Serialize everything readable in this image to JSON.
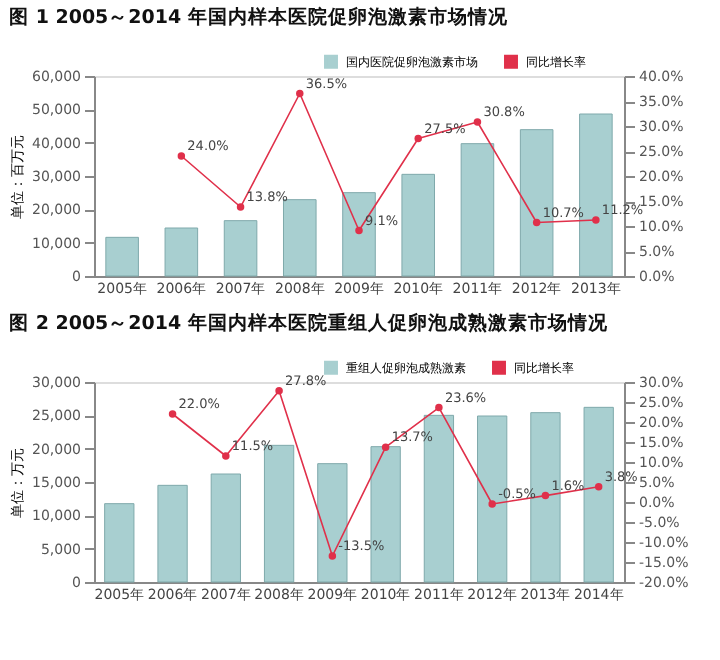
{
  "chart_data": [
    {
      "type": "bar",
      "title": "图 1  2005～2014 年国内样本医院促卵泡激素市场情况",
      "ylabel": "单位：百万元",
      "categories": [
        "2005年",
        "2006年",
        "2007年",
        "2008年",
        "2009年",
        "2010年",
        "2011年",
        "2012年",
        "2013年"
      ],
      "series": [
        {
          "name": "国内医院促卵泡激素市场",
          "color": "#a8cfd0",
          "values": [
            11600,
            14400,
            16600,
            22900,
            25000,
            30500,
            39700,
            43900,
            48600
          ]
        },
        {
          "name": "同比增长率",
          "type": "line",
          "axis": "y2",
          "color": "#e0304a",
          "marker": "circle",
          "values": [
            null,
            24.0,
            13.8,
            36.5,
            9.1,
            27.5,
            30.8,
            10.7,
            11.2
          ],
          "value_labels": [
            null,
            "24.0%",
            "13.8%",
            "36.5%",
            "9.1%",
            "27.5%",
            "30.8%",
            "10.7%",
            "11.2%"
          ]
        }
      ],
      "ylim": [
        0,
        60000
      ],
      "yticks": [
        {
          "value": 0,
          "label": "0"
        },
        {
          "value": 10000,
          "label": "10,000"
        },
        {
          "value": 20000,
          "label": "20,000"
        },
        {
          "value": 30000,
          "label": "30,000"
        },
        {
          "value": 40000,
          "label": "40,000"
        },
        {
          "value": 50000,
          "label": "50,000"
        },
        {
          "value": 60000,
          "label": "60,000"
        }
      ],
      "y2lim": [
        0,
        40
      ],
      "y2ticks": [
        {
          "value": 0,
          "label": "0.0%"
        },
        {
          "value": 5,
          "label": "5.0%"
        },
        {
          "value": 10,
          "label": "10.0%"
        },
        {
          "value": 15,
          "label": "15.0%"
        },
        {
          "value": 20,
          "label": "20.0%"
        },
        {
          "value": 25,
          "label": "25.0%"
        },
        {
          "value": 30,
          "label": "30.0%"
        },
        {
          "value": 35,
          "label": "35.0%"
        },
        {
          "value": 40,
          "label": "40.0%"
        }
      ],
      "grid": false,
      "legend": "top right"
    },
    {
      "type": "bar",
      "title": "图 2  2005～2014 年国内样本医院重组人促卵泡成熟激素市场情况",
      "ylabel": "单位：万元",
      "categories": [
        "2005年",
        "2006年",
        "2007年",
        "2008年",
        "2009年",
        "2010年",
        "2011年",
        "2012年",
        "2013年",
        "2014年"
      ],
      "series": [
        {
          "name": "重组人促卵泡成熟激素",
          "color": "#a8cfd0",
          "values": [
            11750,
            14500,
            16200,
            20500,
            17750,
            20300,
            25000,
            24900,
            25400,
            26200
          ]
        },
        {
          "name": "同比增长率",
          "type": "line",
          "axis": "y2",
          "color": "#e0304a",
          "marker": "circle",
          "values": [
            null,
            22.0,
            11.5,
            27.8,
            -13.5,
            13.7,
            23.6,
            -0.5,
            1.6,
            3.8
          ],
          "value_labels": [
            null,
            "22.0%",
            "11.5%",
            "27.8%",
            "-13.5%",
            "13.7%",
            "23.6%",
            "-0.5%",
            "1.6%",
            "3.8%"
          ]
        }
      ],
      "ylim": [
        0,
        30000
      ],
      "yticks": [
        {
          "value": 0,
          "label": "0"
        },
        {
          "value": 5000,
          "label": "5,000"
        },
        {
          "value": 10000,
          "label": "10,000"
        },
        {
          "value": 15000,
          "label": "15,000"
        },
        {
          "value": 20000,
          "label": "20,000"
        },
        {
          "value": 25000,
          "label": "25,000"
        },
        {
          "value": 30000,
          "label": "30,000"
        }
      ],
      "y2lim": [
        -20,
        30
      ],
      "y2ticks": [
        {
          "value": -20,
          "label": "-20.0%"
        },
        {
          "value": -15,
          "label": "-15.0%"
        },
        {
          "value": -10,
          "label": "-10.0%"
        },
        {
          "value": -5,
          "label": "-5.0%"
        },
        {
          "value": 0,
          "label": "0.0%"
        },
        {
          "value": 5,
          "label": "5.0%"
        },
        {
          "value": 10,
          "label": "10.0%"
        },
        {
          "value": 15,
          "label": "15.0%"
        },
        {
          "value": 20,
          "label": "20.0%"
        },
        {
          "value": 25,
          "label": "25.0%"
        },
        {
          "value": 30,
          "label": "30.0%"
        }
      ],
      "grid": false,
      "legend": "top right"
    }
  ]
}
